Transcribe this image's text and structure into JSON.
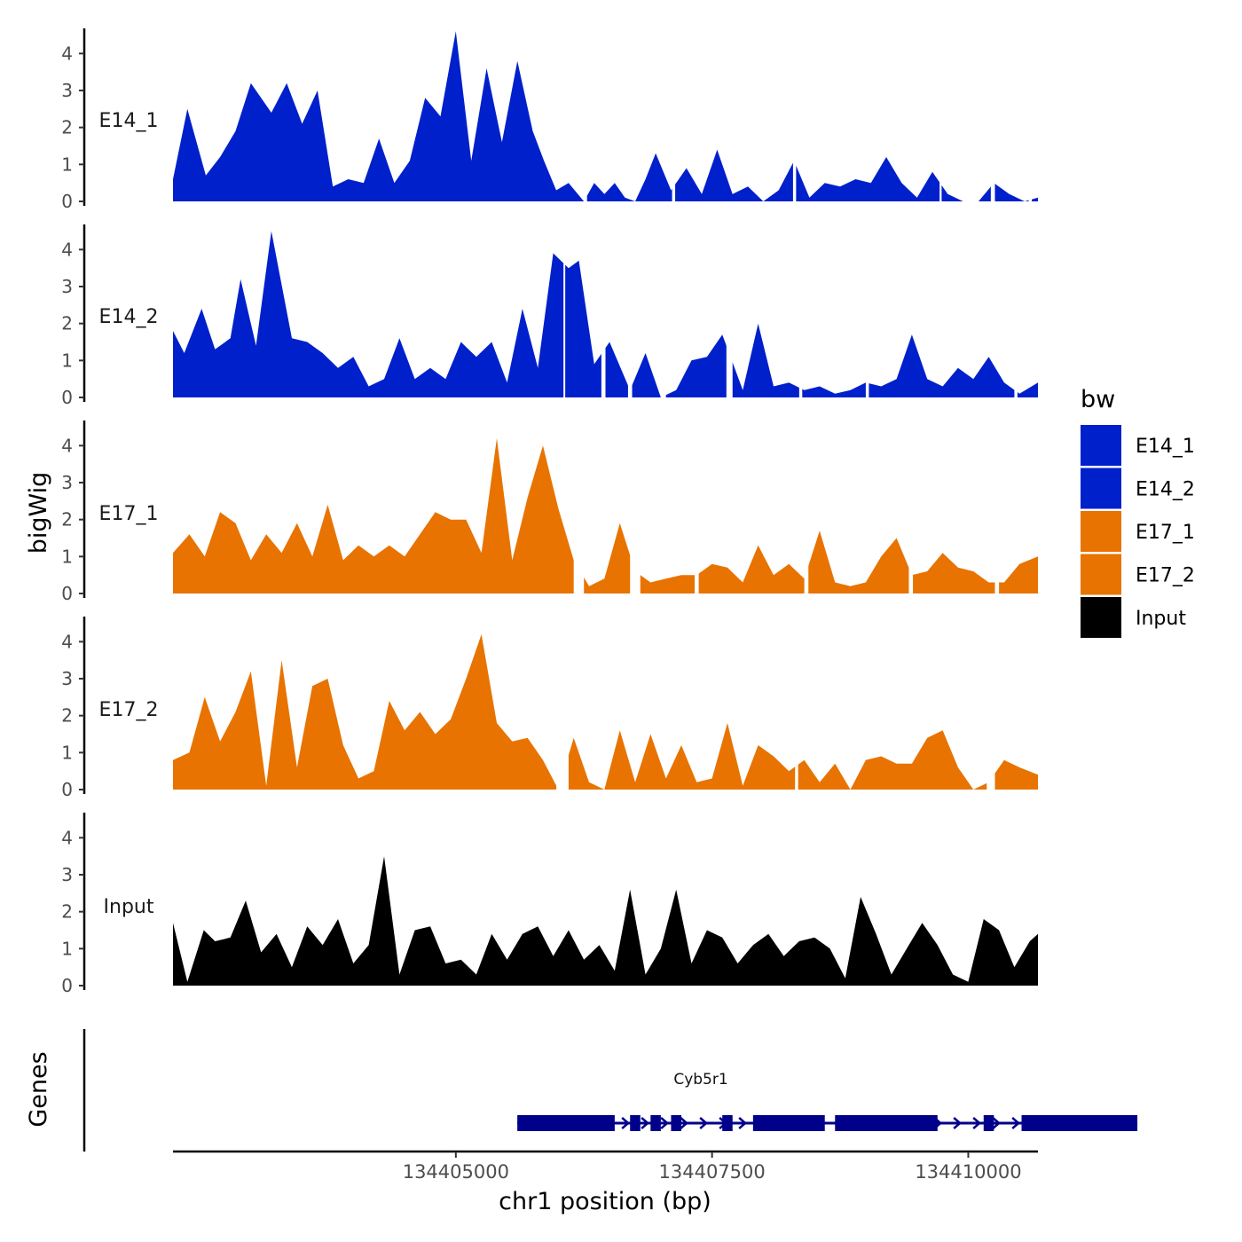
{
  "chart_data": {
    "type": "area",
    "title": "",
    "ylabel": "bigWig",
    "xlabel": "chr1 position (bp)",
    "ylim": [
      0,
      4.8
    ],
    "y_ticks": [
      0,
      1,
      2,
      3,
      4
    ],
    "x_range": [
      134402240,
      134410680
    ],
    "x_ticks": [
      134405000,
      134407500,
      134410000
    ],
    "x_tick_labels": [
      "134405000",
      "134407500",
      "134410000"
    ],
    "legend": {
      "title": "bw",
      "position": "right",
      "entries": [
        {
          "name": "E14_1",
          "color": "#0020CC"
        },
        {
          "name": "E14_2",
          "color": "#0020CC"
        },
        {
          "name": "E17_1",
          "color": "#E87300"
        },
        {
          "name": "E17_2",
          "color": "#E87300"
        },
        {
          "name": "Input",
          "color": "#000000"
        }
      ]
    },
    "series": [
      {
        "name": "E14_1",
        "color": "#0020CC",
        "x": [
          134402240,
          134402380,
          134402560,
          134402700,
          134402850,
          134403000,
          134403200,
          134403350,
          134403500,
          134403650,
          134403800,
          134403950,
          134404100,
          134404250,
          134404400,
          134404550,
          134404700,
          134404850,
          134405000,
          134405150,
          134405300,
          134405450,
          134405600,
          134405750,
          134405860,
          134405980,
          134406100,
          134406250,
          134406350,
          134406450,
          134406550,
          134406650,
          134406750,
          134406850,
          134406950,
          134407100,
          134407250,
          134407400,
          134407550,
          134407700,
          134407850,
          134408000,
          134408150,
          134408300,
          134408450,
          134408600,
          134408750,
          134408900,
          134409050,
          134409200,
          134409350,
          134409500,
          134409650,
          134409800,
          134409950,
          134410100,
          134410250,
          134410400,
          134410550,
          134410680
        ],
        "values": [
          0.6,
          2.5,
          0.7,
          1.2,
          1.9,
          3.2,
          2.4,
          3.2,
          2.1,
          3.0,
          0.4,
          0.6,
          0.5,
          1.7,
          0.5,
          1.1,
          2.8,
          2.3,
          4.6,
          1.1,
          3.6,
          1.6,
          3.8,
          1.9,
          1.1,
          0.3,
          0.5,
          0.0,
          0.5,
          0.2,
          0.5,
          0.1,
          0.0,
          0.6,
          1.3,
          0.3,
          0.9,
          0.2,
          1.4,
          0.2,
          0.4,
          0.0,
          0.3,
          1.1,
          0.1,
          0.5,
          0.4,
          0.6,
          0.5,
          1.2,
          0.5,
          0.1,
          0.8,
          0.2,
          0.0,
          0.0,
          0.5,
          0.2,
          0.0,
          0.1
        ],
        "gaps": [
          [
            134406250,
            134406280
          ],
          [
            134407110,
            134407140
          ],
          [
            134408290,
            134408320
          ],
          [
            134409720,
            134409740
          ],
          [
            134410220,
            134410260
          ],
          [
            134410590,
            134410620
          ]
        ]
      },
      {
        "name": "E14_2",
        "color": "#0020CC",
        "x": [
          134402240,
          134402350,
          134402520,
          134402650,
          134402800,
          134402900,
          134403050,
          134403200,
          134403400,
          134403550,
          134403700,
          134403850,
          134404000,
          134404150,
          134404300,
          134404450,
          134404600,
          134404750,
          134404900,
          134405050,
          134405200,
          134405350,
          134405500,
          134405650,
          134405800,
          134405950,
          134406100,
          134406200,
          134406350,
          134406500,
          134406700,
          134406850,
          134407000,
          134407150,
          134407300,
          134407450,
          134407600,
          134407800,
          134407950,
          134408100,
          134408250,
          134408400,
          134408550,
          134408700,
          134408850,
          134409000,
          134409150,
          134409300,
          134409450,
          134409600,
          134409750,
          134409900,
          134410050,
          134410200,
          134410350,
          134410500,
          134410680
        ],
        "values": [
          1.8,
          1.2,
          2.4,
          1.3,
          1.6,
          3.2,
          1.4,
          4.5,
          1.6,
          1.5,
          1.2,
          0.8,
          1.1,
          0.3,
          0.5,
          1.6,
          0.5,
          0.8,
          0.5,
          1.5,
          1.1,
          1.5,
          0.4,
          2.4,
          0.8,
          3.9,
          3.5,
          3.7,
          0.9,
          1.5,
          0.2,
          1.2,
          0.0,
          0.2,
          1.0,
          1.1,
          1.7,
          0.2,
          2.0,
          0.3,
          0.4,
          0.2,
          0.3,
          0.1,
          0.2,
          0.4,
          0.3,
          0.5,
          1.7,
          0.5,
          0.3,
          0.8,
          0.5,
          1.1,
          0.4,
          0.1,
          0.4
        ],
        "gaps": [
          [
            134406050,
            134406060
          ],
          [
            134406420,
            134406460
          ],
          [
            134406680,
            134406720
          ],
          [
            134407000,
            134407050
          ],
          [
            134407640,
            134407700
          ],
          [
            134408350,
            134408380
          ],
          [
            134409000,
            134409030
          ],
          [
            134410450,
            134410480
          ]
        ]
      },
      {
        "name": "E17_1",
        "color": "#E87300",
        "x": [
          134402240,
          134402400,
          134402550,
          134402700,
          134402850,
          134403000,
          134403150,
          134403300,
          134403450,
          134403600,
          134403750,
          134403900,
          134404050,
          134404200,
          134404350,
          134404500,
          134404650,
          134404800,
          134404950,
          134405100,
          134405250,
          134405400,
          134405550,
          134405700,
          134405850,
          134406000,
          134406150,
          134406300,
          134406450,
          134406600,
          134406750,
          134406900,
          134407050,
          134407200,
          134407350,
          134407500,
          134407650,
          134407800,
          134407950,
          134408100,
          134408250,
          134408400,
          134408550,
          134408700,
          134408850,
          134409000,
          134409150,
          134409300,
          134409450,
          134409600,
          134409750,
          134409900,
          134410050,
          134410200,
          134410350,
          134410500,
          134410680
        ],
        "values": [
          1.1,
          1.6,
          1.0,
          2.2,
          1.9,
          0.9,
          1.6,
          1.1,
          1.9,
          1.0,
          2.4,
          0.9,
          1.3,
          1.0,
          1.3,
          1.0,
          1.6,
          2.2,
          2.0,
          2.0,
          1.1,
          4.2,
          0.9,
          2.6,
          4.0,
          2.3,
          0.9,
          0.2,
          0.4,
          1.9,
          0.6,
          0.3,
          0.4,
          0.5,
          0.5,
          0.8,
          0.7,
          0.3,
          1.3,
          0.5,
          0.8,
          0.4,
          1.7,
          0.3,
          0.2,
          0.3,
          1.0,
          1.5,
          0.5,
          0.6,
          1.1,
          0.7,
          0.6,
          0.3,
          0.3,
          0.8,
          1.0
        ],
        "gaps": [
          [
            134406150,
            134406250
          ],
          [
            134406700,
            134406800
          ],
          [
            134407330,
            134407370
          ],
          [
            134408400,
            134408440
          ],
          [
            134409420,
            134409460
          ],
          [
            134410260,
            134410300
          ]
        ]
      },
      {
        "name": "E17_2",
        "color": "#E87300",
        "x": [
          134402240,
          134402400,
          134402550,
          134402700,
          134402850,
          134403000,
          134403150,
          134403300,
          134403450,
          134403600,
          134403750,
          134403900,
          134404050,
          134404200,
          134404350,
          134404500,
          134404650,
          134404800,
          134404950,
          134405100,
          134405250,
          134405400,
          134405550,
          134405700,
          134405850,
          134406000,
          134406150,
          134406300,
          134406450,
          134406600,
          134406750,
          134406900,
          134407050,
          134407200,
          134407350,
          134407500,
          134407650,
          134407800,
          134407950,
          134408100,
          134408250,
          134408400,
          134408550,
          134408700,
          134408850,
          134409000,
          134409150,
          134409300,
          134409450,
          134409600,
          134409750,
          134409900,
          134410050,
          134410200,
          134410350,
          134410500,
          134410680
        ],
        "values": [
          0.8,
          1.0,
          2.5,
          1.3,
          2.1,
          3.2,
          0.1,
          3.5,
          0.6,
          2.8,
          3.0,
          1.2,
          0.3,
          0.5,
          2.4,
          1.6,
          2.1,
          1.5,
          1.9,
          3.0,
          4.2,
          1.8,
          1.3,
          1.4,
          0.8,
          0.0,
          1.4,
          0.2,
          0.0,
          1.6,
          0.2,
          1.5,
          0.3,
          1.2,
          0.2,
          0.3,
          1.8,
          0.1,
          1.2,
          0.9,
          0.5,
          0.8,
          0.2,
          0.7,
          0.0,
          0.8,
          0.9,
          0.7,
          0.7,
          1.4,
          1.6,
          0.6,
          0.0,
          0.2,
          0.8,
          0.6,
          0.4
        ],
        "gaps": [
          [
            134405980,
            134406100
          ],
          [
            134408310,
            134408340
          ],
          [
            134410180,
            134410260
          ]
        ]
      },
      {
        "name": "Input",
        "color": "#000000",
        "x": [
          134402240,
          134402380,
          134402540,
          134402650,
          134402800,
          134402950,
          134403100,
          134403250,
          134403400,
          134403550,
          134403700,
          134403850,
          134404000,
          134404150,
          134404300,
          134404450,
          134404600,
          134404750,
          134404900,
          134405050,
          134405200,
          134405350,
          134405500,
          134405650,
          134405800,
          134405950,
          134406100,
          134406250,
          134406400,
          134406550,
          134406700,
          134406850,
          134407000,
          134407150,
          134407300,
          134407450,
          134407600,
          134407750,
          134407900,
          134408050,
          134408200,
          134408350,
          134408500,
          134408650,
          134408800,
          134408950,
          134409100,
          134409250,
          134409400,
          134409550,
          134409700,
          134409850,
          134410000,
          134410150,
          134410300,
          134410450,
          134410600,
          134410680
        ],
        "values": [
          1.7,
          0.1,
          1.5,
          1.2,
          1.3,
          2.3,
          0.9,
          1.4,
          0.5,
          1.6,
          1.1,
          1.8,
          0.6,
          1.1,
          3.5,
          0.3,
          1.5,
          1.6,
          0.6,
          0.7,
          0.3,
          1.4,
          0.7,
          1.4,
          1.6,
          0.8,
          1.5,
          0.7,
          1.1,
          0.4,
          2.6,
          0.3,
          1.0,
          2.6,
          0.6,
          1.5,
          1.3,
          0.6,
          1.1,
          1.4,
          0.8,
          1.2,
          1.3,
          1.0,
          0.2,
          2.4,
          1.4,
          0.3,
          1.0,
          1.7,
          1.1,
          0.3,
          0.1,
          1.8,
          1.5,
          0.5,
          1.2,
          1.4
        ]
      }
    ],
    "genes": {
      "label": "Genes",
      "name": "Cyb5r1",
      "color": "#00008B",
      "strand": "+",
      "start": 134405600,
      "end": 134411650,
      "exons": [
        [
          134405600,
          134406550
        ],
        [
          134406700,
          134406800
        ],
        [
          134406900,
          134407000
        ],
        [
          134407100,
          134407200
        ],
        [
          134407600,
          134407700
        ],
        [
          134407900,
          134408600
        ],
        [
          134408700,
          134409700
        ],
        [
          134410150,
          134410250
        ],
        [
          134410520,
          134411650
        ]
      ]
    }
  }
}
